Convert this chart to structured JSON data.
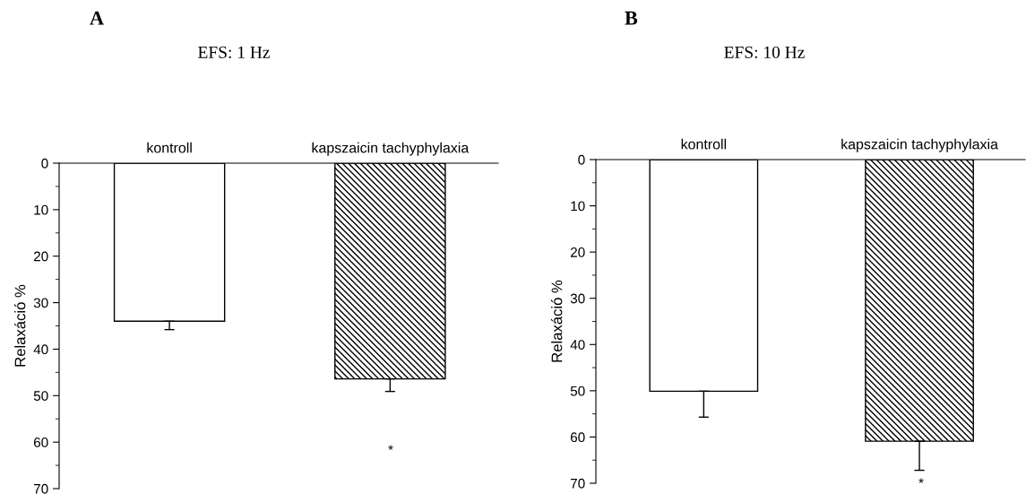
{
  "chart_data": [
    {
      "type": "bar",
      "title": "EFS: 1 Hz",
      "ylabel": "Relaxáció %",
      "categories": [
        "kontroll",
        "kapszaicin tachyphylaxia"
      ],
      "values": [
        34.0,
        46.4
      ],
      "colors": [
        "#ffffff",
        "#000000"
      ],
      "errors": [
        [
          34.0,
          35.8
        ],
        [
          46.4,
          49.1
        ]
      ],
      "ylim": [
        70,
        0
      ],
      "yticks": [
        0,
        10,
        20,
        30,
        40,
        50,
        60,
        70
      ],
      "annotations": [
        "A",
        "*"
      ]
    },
    {
      "type": "bar",
      "title": "EFS: 10 Hz",
      "ylabel": "Relaxáció %",
      "categories": [
        "kontroll",
        "kapszaicin tachyphylaxia"
      ],
      "values": [
        50.1,
        60.9
      ],
      "colors": [
        "#ffffff",
        "#000000"
      ],
      "errors": [
        [
          50.1,
          55.7
        ],
        [
          60.9,
          67.2
        ]
      ],
      "ylim": [
        70,
        0
      ],
      "yticks": [
        0,
        10,
        20,
        30,
        40,
        50,
        60,
        70
      ],
      "annotations": [
        "B",
        "*"
      ]
    }
  ]
}
